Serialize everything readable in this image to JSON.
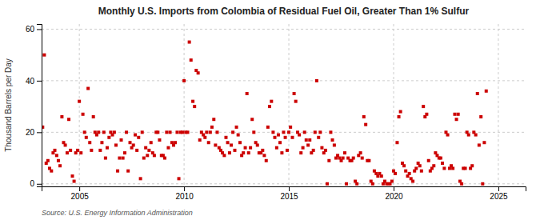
{
  "chart_data": {
    "type": "scatter",
    "title": "Monthly U.S. Imports from Colombia of Residual Fuel Oil, Greater Than 1% Sulfur",
    "ylabel": "Thousand Barrels per Day",
    "source": "Source: U.S. Energy Information Administration",
    "color": "#cc0000",
    "marker": "square",
    "grid": true,
    "xlim": [
      2003.2,
      2026.3
    ],
    "ylim": [
      -1,
      62
    ],
    "xticks": [
      2005,
      2010,
      2015,
      2020,
      2025
    ],
    "yticks": [
      0,
      20,
      40,
      60
    ],
    "x": [
      2003.25,
      2003.33,
      2003.42,
      2003.5,
      2003.58,
      2003.67,
      2003.75,
      2003.83,
      2003.92,
      2004.0,
      2004.08,
      2004.17,
      2004.25,
      2004.33,
      2004.42,
      2004.5,
      2004.58,
      2004.67,
      2004.75,
      2004.83,
      2004.92,
      2005.0,
      2005.08,
      2005.17,
      2005.25,
      2005.33,
      2005.42,
      2005.5,
      2005.58,
      2005.67,
      2005.75,
      2005.83,
      2005.92,
      2006.0,
      2006.08,
      2006.17,
      2006.25,
      2006.33,
      2006.42,
      2006.5,
      2006.58,
      2006.67,
      2006.75,
      2006.83,
      2006.92,
      2007.0,
      2007.08,
      2007.17,
      2007.25,
      2007.33,
      2007.42,
      2007.5,
      2007.58,
      2007.67,
      2007.75,
      2007.83,
      2007.92,
      2008.0,
      2008.08,
      2008.17,
      2008.25,
      2008.33,
      2008.42,
      2008.5,
      2008.58,
      2008.67,
      2008.75,
      2008.83,
      2008.92,
      2009.0,
      2009.08,
      2009.17,
      2009.25,
      2009.33,
      2009.42,
      2009.5,
      2009.58,
      2009.67,
      2009.75,
      2009.83,
      2009.92,
      2010.0,
      2010.08,
      2010.17,
      2010.25,
      2010.33,
      2010.42,
      2010.5,
      2010.58,
      2010.67,
      2010.75,
      2010.83,
      2010.92,
      2011.0,
      2011.08,
      2011.17,
      2011.25,
      2011.33,
      2011.42,
      2011.5,
      2011.58,
      2011.67,
      2011.75,
      2011.83,
      2011.92,
      2012.0,
      2012.08,
      2012.17,
      2012.25,
      2012.33,
      2012.42,
      2012.5,
      2012.58,
      2012.67,
      2012.75,
      2012.83,
      2012.92,
      2013.0,
      2013.08,
      2013.17,
      2013.25,
      2013.33,
      2013.42,
      2013.5,
      2013.58,
      2013.67,
      2013.75,
      2013.83,
      2013.92,
      2014.0,
      2014.08,
      2014.17,
      2014.25,
      2014.33,
      2014.42,
      2014.5,
      2014.58,
      2014.67,
      2014.75,
      2014.83,
      2014.92,
      2015.0,
      2015.08,
      2015.17,
      2015.25,
      2015.33,
      2015.42,
      2015.5,
      2015.58,
      2015.67,
      2015.75,
      2015.83,
      2015.92,
      2016.0,
      2016.08,
      2016.17,
      2016.25,
      2016.33,
      2016.42,
      2016.5,
      2016.58,
      2016.67,
      2016.75,
      2016.83,
      2016.92,
      2017.0,
      2017.08,
      2017.17,
      2017.25,
      2017.33,
      2017.42,
      2017.5,
      2017.58,
      2017.67,
      2017.75,
      2017.83,
      2017.92,
      2018.0,
      2018.08,
      2018.17,
      2018.25,
      2018.33,
      2018.42,
      2018.5,
      2018.58,
      2018.67,
      2018.75,
      2018.83,
      2018.92,
      2019.0,
      2019.08,
      2019.17,
      2019.25,
      2019.33,
      2019.42,
      2019.5,
      2019.58,
      2019.67,
      2019.75,
      2019.83,
      2019.92,
      2020.0,
      2020.08,
      2020.17,
      2020.25,
      2020.33,
      2020.42,
      2020.5,
      2020.58,
      2020.67,
      2020.75,
      2020.83,
      2020.92,
      2021.0,
      2021.08,
      2021.17,
      2021.25,
      2021.33,
      2021.42,
      2021.5,
      2021.58,
      2021.67,
      2021.75,
      2021.83,
      2021.92,
      2022.0,
      2022.08,
      2022.17,
      2022.25,
      2022.33,
      2022.42,
      2022.5,
      2022.58,
      2022.67,
      2022.75,
      2022.83,
      2022.92,
      2023.0,
      2023.08,
      2023.17,
      2023.25,
      2023.33,
      2023.42,
      2023.5,
      2023.58,
      2023.67,
      2023.75,
      2023.83,
      2023.92,
      2024.0,
      2024.08,
      2024.17,
      2024.25,
      2024.33,
      2024.42
    ],
    "values": [
      22,
      50,
      8,
      9,
      6,
      5,
      12,
      13,
      11,
      9,
      7,
      26,
      16,
      15,
      12,
      25,
      13,
      3,
      1,
      12,
      13,
      32,
      12,
      27,
      20,
      18,
      37,
      16,
      13,
      26,
      20,
      19,
      20,
      13,
      16,
      20,
      10,
      14,
      18,
      20,
      19,
      20,
      15,
      5,
      10,
      17,
      10,
      12,
      20,
      5,
      16,
      14,
      15,
      19,
      13,
      18,
      2,
      20,
      10,
      14,
      11,
      13,
      16,
      12,
      11,
      20,
      20,
      17,
      11,
      11,
      10,
      20,
      14,
      20,
      16,
      15,
      16,
      20,
      2,
      20,
      20,
      40,
      20,
      20,
      55,
      48,
      32,
      30,
      44,
      43,
      17,
      20,
      19,
      18,
      20,
      16,
      20,
      22,
      25,
      15,
      20,
      14,
      13,
      12,
      11,
      18,
      16,
      12,
      15,
      20,
      13,
      22,
      19,
      16,
      11,
      12,
      14,
      35,
      12,
      14,
      25,
      20,
      16,
      15,
      12,
      12,
      13,
      11,
      9,
      22,
      30,
      32,
      20,
      18,
      14,
      19,
      16,
      12,
      20,
      18,
      13,
      20,
      22,
      18,
      35,
      32,
      20,
      19,
      12,
      14,
      20,
      17,
      15,
      17,
      12,
      13,
      20,
      40,
      18,
      20,
      14,
      12,
      13,
      0,
      9,
      20,
      17,
      15,
      10,
      11,
      10,
      9,
      10,
      12,
      0,
      10,
      9,
      9,
      10,
      1,
      0,
      11,
      12,
      10,
      26,
      23,
      9,
      9,
      1,
      0,
      5,
      4,
      3,
      4,
      3,
      0,
      1,
      0,
      0,
      0,
      1,
      5,
      4,
      16,
      26,
      28,
      8,
      7,
      5,
      3,
      4,
      2,
      1,
      5,
      6,
      8,
      7,
      5,
      30,
      26,
      27,
      9,
      5,
      6,
      7,
      12,
      11,
      10,
      10,
      8,
      6,
      20,
      19,
      6,
      7,
      6,
      27,
      25,
      27,
      1,
      0,
      6,
      6,
      20,
      19,
      6,
      7,
      20,
      19,
      35,
      15,
      26,
      0,
      16,
      36
    ]
  }
}
